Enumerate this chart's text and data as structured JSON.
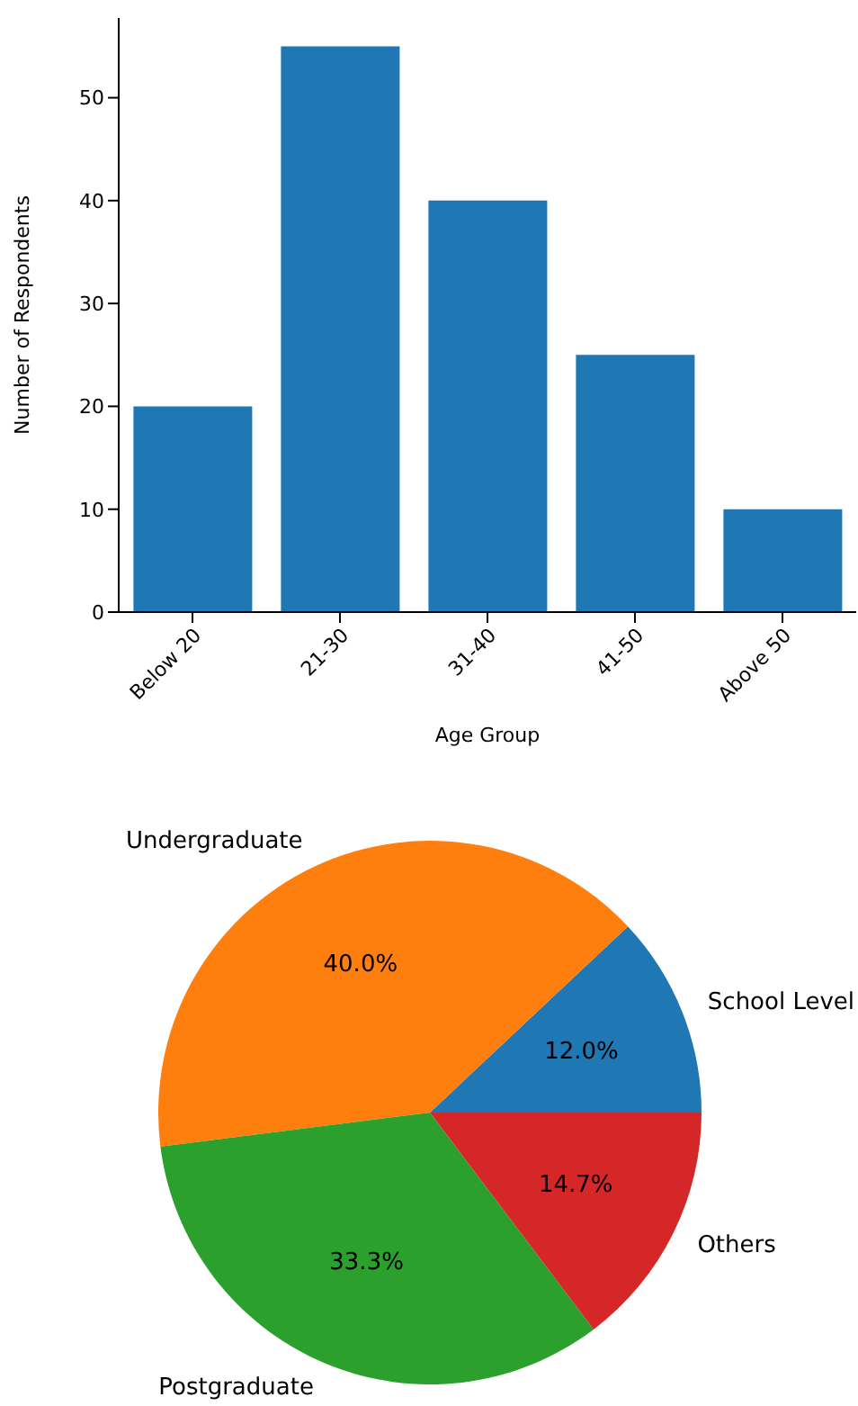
{
  "chart_data": [
    {
      "type": "bar",
      "xlabel": "Age Group",
      "ylabel": "Number of Respondents",
      "categories": [
        "Below 20",
        "21-30",
        "31-40",
        "41-50",
        "Above 50"
      ],
      "values": [
        20,
        55,
        40,
        25,
        10
      ],
      "color": "#1f77b4",
      "ylim": [
        0,
        57.75
      ],
      "yticks": [
        0,
        10,
        20,
        30,
        40,
        50
      ],
      "grid": false,
      "legend": false
    },
    {
      "type": "pie",
      "categories": [
        "School Level",
        "Undergraduate",
        "Postgraduate",
        "Others"
      ],
      "values": [
        12.0,
        40.0,
        33.3,
        14.7
      ],
      "colors": [
        "#1f77b4",
        "#ff7f0e",
        "#2ca02c",
        "#d62728"
      ],
      "value_labels": [
        "12.0%",
        "40.0%",
        "33.3%",
        "14.7%"
      ],
      "legend": false
    }
  ]
}
